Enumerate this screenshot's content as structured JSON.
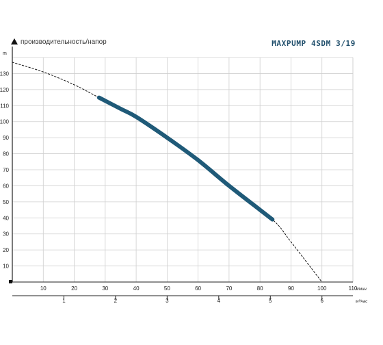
{
  "header": {
    "subtitle": "производительность/напор",
    "title": "MAXPUMP 4SDM 3/19"
  },
  "chart_data": {
    "type": "line",
    "title": "MAXPUMP 4SDM 3/19",
    "subtitle": "производительность/напор",
    "ylabel": "m",
    "xlabel": "л/мин",
    "xlabel2": "м³/час",
    "xlim": [
      0,
      110
    ],
    "ylim": [
      0,
      140
    ],
    "x_ticks": [
      10,
      20,
      30,
      40,
      50,
      60,
      70,
      80,
      90,
      100,
      110
    ],
    "x_tick_labels": [
      "10",
      "20",
      "30",
      "40",
      "50",
      "60",
      "70",
      "80",
      "90",
      "100",
      "110"
    ],
    "x2_ticks": [
      1,
      2,
      3,
      4,
      5,
      6
    ],
    "x2_tick_labels": [
      "1",
      "2",
      "3",
      "4",
      "5",
      "6"
    ],
    "y_ticks": [
      10,
      20,
      30,
      40,
      50,
      60,
      70,
      80,
      90,
      100,
      110,
      120,
      130
    ],
    "y_tick_labels": [
      "10",
      "20",
      "30",
      "40",
      "50",
      "60",
      "70",
      "80",
      "90",
      "100",
      "110",
      "120",
      "130"
    ],
    "grid": true,
    "series": [
      {
        "style": "dashed",
        "color": "#111111",
        "x": [
          0,
          10,
          20,
          28,
          40,
          50,
          60,
          70,
          84,
          90,
          100
        ],
        "y": [
          137,
          131,
          123,
          115,
          103,
          90,
          76,
          60,
          39,
          25,
          0
        ]
      },
      {
        "style": "solid-thick",
        "color": "#1f5a78",
        "x": [
          28,
          35,
          40,
          50,
          60,
          70,
          80,
          84
        ],
        "y": [
          115,
          108,
          103,
          90,
          76,
          60,
          45,
          39
        ]
      }
    ]
  }
}
